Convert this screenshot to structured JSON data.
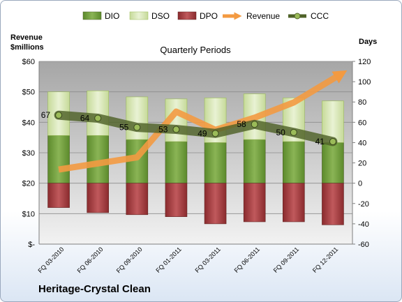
{
  "company": "Heritage-Crystal Clean",
  "chart_data": {
    "type": "bar",
    "title": "Quarterly Periods",
    "categories": [
      "FQ 03-2010",
      "FQ 06-2010",
      "FQ 09-2010",
      "FQ 01-2011",
      "FQ 03-2011",
      "FQ 06-2011",
      "FQ 09-2011",
      "FQ 12-2011"
    ],
    "y_left": {
      "label_line1": "Revenue",
      "label_line2": "$millions",
      "ylim": [
        0,
        60
      ],
      "ticks": [
        "$-",
        "$10",
        "$20",
        "$30",
        "$40",
        "$50",
        "$60"
      ]
    },
    "y_right": {
      "label": "Days",
      "ylim": [
        -60,
        120
      ],
      "ticks": [
        "-60",
        "-40",
        "-20",
        "0",
        "20",
        "40",
        "60",
        "80",
        "100",
        "120"
      ]
    },
    "grid": true,
    "legend_position": "top",
    "series": [
      {
        "name": "DIO",
        "axis": "right",
        "kind": "stacked-bar",
        "color": "#6f9a3a",
        "values": [
          47,
          47,
          43,
          41,
          40,
          43,
          41,
          40
        ]
      },
      {
        "name": "DSO",
        "axis": "right",
        "kind": "stacked-bar",
        "color": "#d7e6b4",
        "values": [
          43,
          44,
          42,
          42,
          44,
          45,
          43,
          41
        ]
      },
      {
        "name": "DPO",
        "axis": "right",
        "kind": "bar-negative",
        "color": "#a0393c",
        "values": [
          -24,
          -29,
          -31,
          -33,
          -40,
          -38,
          -38,
          -41
        ]
      },
      {
        "name": "Revenue",
        "axis": "left",
        "kind": "line",
        "color": "#f39a41",
        "values": [
          24.5,
          26.5,
          28.5,
          43.5,
          37.5,
          41.5,
          46.5,
          54.5
        ]
      },
      {
        "name": "CCC",
        "axis": "right",
        "kind": "line",
        "color": "#4f6228",
        "values": [
          67,
          64,
          55,
          53,
          49,
          58,
          50,
          41
        ]
      }
    ]
  }
}
